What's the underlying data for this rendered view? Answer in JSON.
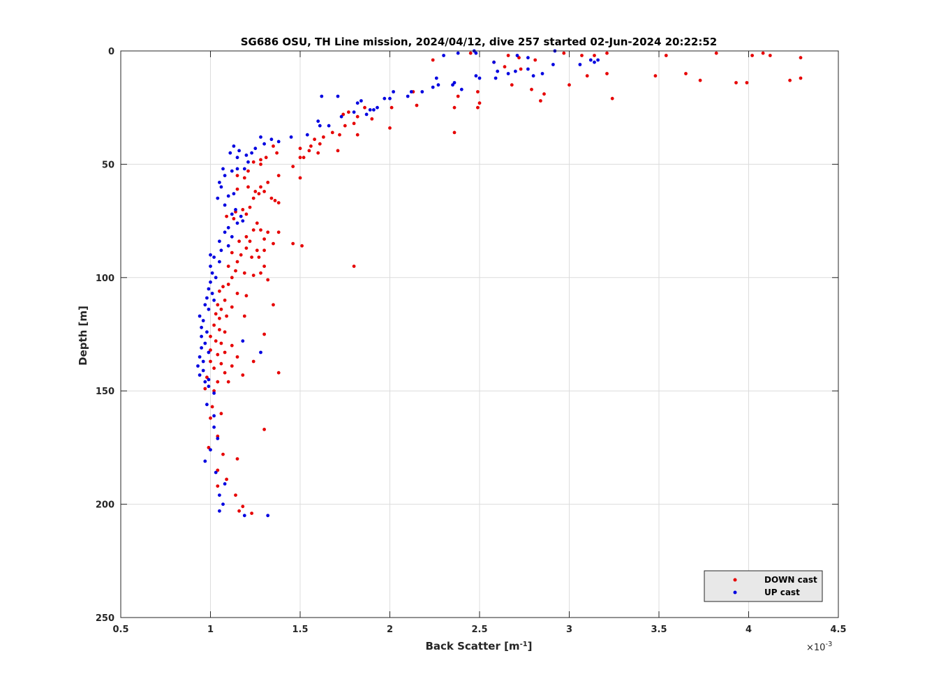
{
  "chart_data": {
    "type": "scatter",
    "title": "SG686 OSU, TH Line mission, 2024/04/12, dive 257 started 02-Jun-2024 20:22:52",
    "xlabel_main": "Back Scatter [m",
    "xlabel_sup": "-1",
    "xlabel_end": "]",
    "ylabel": "Depth [m]",
    "x_exponent_base": "×10",
    "x_exponent_power": "-3",
    "xlim": [
      0.5,
      4.5
    ],
    "ylim": [
      0,
      250
    ],
    "y_reversed": true,
    "xticks": [
      0.5,
      1,
      1.5,
      2,
      2.5,
      3,
      3.5,
      4,
      4.5
    ],
    "xtick_labels": [
      "0.5",
      "1",
      "1.5",
      "2",
      "2.5",
      "3",
      "3.5",
      "4",
      "4.5"
    ],
    "yticks": [
      0,
      50,
      100,
      150,
      200,
      250
    ],
    "ytick_labels": [
      "0",
      "50",
      "100",
      "150",
      "200",
      "250"
    ],
    "grid": true,
    "legend_position": "bottom-right",
    "colors": {
      "down": "#e60000",
      "up": "#0000e0"
    },
    "series": [
      {
        "name": "DOWN cast",
        "color": "#e60000",
        "points": [
          [
            2.45,
            1
          ],
          [
            2.66,
            2
          ],
          [
            2.72,
            3
          ],
          [
            2.97,
            1
          ],
          [
            3.07,
            2
          ],
          [
            3.14,
            2
          ],
          [
            3.21,
            1
          ],
          [
            3.54,
            2
          ],
          [
            3.82,
            1
          ],
          [
            4.02,
            2
          ],
          [
            4.08,
            1
          ],
          [
            4.12,
            2
          ],
          [
            4.29,
            3
          ],
          [
            2.24,
            4
          ],
          [
            2.58,
            5
          ],
          [
            2.64,
            7
          ],
          [
            2.73,
            8
          ],
          [
            2.81,
            4
          ],
          [
            3.1,
            11
          ],
          [
            3.21,
            10
          ],
          [
            3.48,
            11
          ],
          [
            3.65,
            10
          ],
          [
            3.73,
            13
          ],
          [
            3.93,
            14
          ],
          [
            3.99,
            14
          ],
          [
            4.23,
            13
          ],
          [
            4.29,
            12
          ],
          [
            2.68,
            15
          ],
          [
            2.79,
            17
          ],
          [
            2.86,
            19
          ],
          [
            2.84,
            22
          ],
          [
            3.0,
            15
          ],
          [
            3.24,
            21
          ],
          [
            2.49,
            18
          ],
          [
            2.5,
            23
          ],
          [
            2.49,
            25
          ],
          [
            2.38,
            20
          ],
          [
            2.36,
            25
          ],
          [
            2.36,
            36
          ],
          [
            2.13,
            18
          ],
          [
            2.15,
            24
          ],
          [
            2.01,
            25
          ],
          [
            2.0,
            34
          ],
          [
            1.9,
            30
          ],
          [
            1.86,
            25
          ],
          [
            1.82,
            29
          ],
          [
            1.8,
            32
          ],
          [
            1.82,
            37
          ],
          [
            1.77,
            27
          ],
          [
            1.75,
            33
          ],
          [
            1.72,
            37
          ],
          [
            1.74,
            28
          ],
          [
            1.68,
            36
          ],
          [
            1.63,
            38
          ],
          [
            1.58,
            39
          ],
          [
            1.61,
            41
          ],
          [
            1.6,
            45
          ],
          [
            1.55,
            44
          ],
          [
            1.56,
            42
          ],
          [
            1.5,
            43
          ],
          [
            1.5,
            47
          ],
          [
            1.52,
            47
          ],
          [
            1.46,
            51
          ],
          [
            1.5,
            56
          ],
          [
            1.71,
            44
          ],
          [
            1.35,
            42
          ],
          [
            1.37,
            45
          ],
          [
            1.31,
            47
          ],
          [
            1.28,
            48
          ],
          [
            1.28,
            50
          ],
          [
            1.24,
            49
          ],
          [
            1.21,
            53
          ],
          [
            1.19,
            56
          ],
          [
            1.15,
            55
          ],
          [
            1.38,
            55
          ],
          [
            1.32,
            58
          ],
          [
            1.28,
            60
          ],
          [
            1.21,
            60
          ],
          [
            1.15,
            61
          ],
          [
            1.25,
            62
          ],
          [
            1.27,
            63
          ],
          [
            1.3,
            62
          ],
          [
            1.34,
            65
          ],
          [
            1.36,
            66
          ],
          [
            1.38,
            67
          ],
          [
            1.24,
            65
          ],
          [
            1.22,
            69
          ],
          [
            1.18,
            70
          ],
          [
            1.14,
            71
          ],
          [
            1.2,
            72
          ],
          [
            1.09,
            73
          ],
          [
            1.13,
            74
          ],
          [
            1.26,
            76
          ],
          [
            1.24,
            79
          ],
          [
            1.28,
            79
          ],
          [
            1.32,
            80
          ],
          [
            1.38,
            80
          ],
          [
            1.2,
            82
          ],
          [
            1.3,
            83
          ],
          [
            1.35,
            85
          ],
          [
            1.22,
            84
          ],
          [
            1.16,
            84
          ],
          [
            1.46,
            85
          ],
          [
            1.51,
            86
          ],
          [
            1.2,
            87
          ],
          [
            1.26,
            88
          ],
          [
            1.3,
            88
          ],
          [
            1.12,
            89
          ],
          [
            1.17,
            90
          ],
          [
            1.23,
            91
          ],
          [
            1.27,
            91
          ],
          [
            1.15,
            93
          ],
          [
            1.1,
            95
          ],
          [
            1.3,
            95
          ],
          [
            1.8,
            95
          ],
          [
            1.14,
            97
          ],
          [
            1.19,
            98
          ],
          [
            1.24,
            99
          ],
          [
            1.28,
            98
          ],
          [
            1.32,
            101
          ],
          [
            1.12,
            100
          ],
          [
            1.07,
            104
          ],
          [
            1.1,
            103
          ],
          [
            1.05,
            106
          ],
          [
            1.15,
            107
          ],
          [
            1.2,
            108
          ],
          [
            1.08,
            110
          ],
          [
            1.04,
            112
          ],
          [
            1.06,
            114
          ],
          [
            1.12,
            113
          ],
          [
            1.35,
            112
          ],
          [
            1.03,
            116
          ],
          [
            1.09,
            117
          ],
          [
            1.05,
            118
          ],
          [
            1.19,
            117
          ],
          [
            1.02,
            121
          ],
          [
            1.05,
            123
          ],
          [
            1.08,
            124
          ],
          [
            1.0,
            126
          ],
          [
            1.03,
            128
          ],
          [
            1.06,
            129
          ],
          [
            1.12,
            130
          ],
          [
            1.3,
            125
          ],
          [
            1.0,
            132
          ],
          [
            1.04,
            134
          ],
          [
            1.08,
            133
          ],
          [
            1.15,
            135
          ],
          [
            1.0,
            137
          ],
          [
            1.06,
            138
          ],
          [
            1.12,
            139
          ],
          [
            1.24,
            137
          ],
          [
            1.02,
            140
          ],
          [
            1.08,
            142
          ],
          [
            1.18,
            143
          ],
          [
            1.38,
            142
          ],
          [
            0.98,
            144
          ],
          [
            1.04,
            146
          ],
          [
            1.1,
            146
          ],
          [
            0.97,
            149
          ],
          [
            1.02,
            150
          ],
          [
            1.01,
            157
          ],
          [
            1.0,
            162
          ],
          [
            1.06,
            160
          ],
          [
            1.3,
            167
          ],
          [
            1.04,
            170
          ],
          [
            0.99,
            175
          ],
          [
            1.07,
            178
          ],
          [
            1.15,
            180
          ],
          [
            1.04,
            185
          ],
          [
            1.09,
            189
          ],
          [
            1.04,
            192
          ],
          [
            1.14,
            196
          ],
          [
            1.18,
            201
          ],
          [
            1.16,
            203
          ],
          [
            1.23,
            204
          ]
        ]
      },
      {
        "name": "UP cast",
        "color": "#0000e0",
        "points": [
          [
            2.47,
            0
          ],
          [
            2.48,
            1
          ],
          [
            2.38,
            1
          ],
          [
            2.3,
            2
          ],
          [
            2.71,
            2
          ],
          [
            2.77,
            3
          ],
          [
            2.92,
            0
          ],
          [
            3.16,
            4
          ],
          [
            3.14,
            5
          ],
          [
            3.06,
            6
          ],
          [
            3.12,
            4
          ],
          [
            2.58,
            5
          ],
          [
            2.6,
            9
          ],
          [
            2.7,
            9
          ],
          [
            2.66,
            10
          ],
          [
            2.77,
            8
          ],
          [
            2.8,
            11
          ],
          [
            2.91,
            6
          ],
          [
            2.85,
            10
          ],
          [
            2.59,
            12
          ],
          [
            2.48,
            11
          ],
          [
            2.5,
            12
          ],
          [
            2.4,
            17
          ],
          [
            2.36,
            14
          ],
          [
            2.35,
            15
          ],
          [
            2.26,
            12
          ],
          [
            2.27,
            15
          ],
          [
            2.24,
            16
          ],
          [
            2.18,
            18
          ],
          [
            2.12,
            18
          ],
          [
            2.1,
            20
          ],
          [
            2.02,
            18
          ],
          [
            2.0,
            21
          ],
          [
            1.97,
            21
          ],
          [
            1.93,
            25
          ],
          [
            1.91,
            26
          ],
          [
            1.89,
            26
          ],
          [
            1.87,
            28
          ],
          [
            1.84,
            22
          ],
          [
            1.82,
            23
          ],
          [
            1.8,
            27
          ],
          [
            1.73,
            29
          ],
          [
            1.71,
            20
          ],
          [
            1.62,
            20
          ],
          [
            1.66,
            33
          ],
          [
            1.61,
            33
          ],
          [
            1.6,
            31
          ],
          [
            1.54,
            37
          ],
          [
            1.45,
            38
          ],
          [
            1.38,
            40
          ],
          [
            1.34,
            39
          ],
          [
            1.28,
            38
          ],
          [
            1.3,
            41
          ],
          [
            1.25,
            43
          ],
          [
            1.23,
            45
          ],
          [
            1.2,
            46
          ],
          [
            1.15,
            47
          ],
          [
            1.13,
            42
          ],
          [
            1.11,
            45
          ],
          [
            1.16,
            44
          ],
          [
            1.21,
            49
          ],
          [
            1.19,
            52
          ],
          [
            1.15,
            52
          ],
          [
            1.12,
            53
          ],
          [
            1.08,
            55
          ],
          [
            1.07,
            52
          ],
          [
            1.05,
            58
          ],
          [
            1.06,
            60
          ],
          [
            1.04,
            65
          ],
          [
            1.1,
            64
          ],
          [
            1.13,
            63
          ],
          [
            1.08,
            68
          ],
          [
            1.14,
            70
          ],
          [
            1.12,
            72
          ],
          [
            1.17,
            73
          ],
          [
            1.18,
            75
          ],
          [
            1.15,
            76
          ],
          [
            1.1,
            78
          ],
          [
            1.08,
            80
          ],
          [
            1.12,
            82
          ],
          [
            1.05,
            84
          ],
          [
            1.1,
            86
          ],
          [
            1.06,
            88
          ],
          [
            1.0,
            90
          ],
          [
            1.02,
            91
          ],
          [
            1.05,
            93
          ],
          [
            1.0,
            95
          ],
          [
            1.01,
            98
          ],
          [
            1.03,
            100
          ],
          [
            1.0,
            102
          ],
          [
            0.99,
            105
          ],
          [
            1.01,
            107
          ],
          [
            0.98,
            109
          ],
          [
            1.02,
            110
          ],
          [
            0.97,
            112
          ],
          [
            0.99,
            114
          ],
          [
            0.94,
            117
          ],
          [
            0.96,
            119
          ],
          [
            0.95,
            122
          ],
          [
            0.98,
            124
          ],
          [
            0.95,
            126
          ],
          [
            0.97,
            129
          ],
          [
            0.95,
            131
          ],
          [
            0.99,
            133
          ],
          [
            0.94,
            135
          ],
          [
            0.96,
            137
          ],
          [
            0.93,
            139
          ],
          [
            0.96,
            141
          ],
          [
            0.94,
            143
          ],
          [
            0.99,
            145
          ],
          [
            0.97,
            146
          ],
          [
            0.99,
            148
          ],
          [
            1.02,
            151
          ],
          [
            1.18,
            128
          ],
          [
            1.28,
            133
          ],
          [
            0.98,
            156
          ],
          [
            1.02,
            161
          ],
          [
            1.02,
            166
          ],
          [
            1.04,
            171
          ],
          [
            1.0,
            176
          ],
          [
            0.97,
            181
          ],
          [
            1.03,
            186
          ],
          [
            1.08,
            191
          ],
          [
            1.05,
            196
          ],
          [
            1.07,
            200
          ],
          [
            1.05,
            203
          ],
          [
            1.19,
            205
          ],
          [
            1.32,
            205
          ]
        ]
      }
    ]
  }
}
